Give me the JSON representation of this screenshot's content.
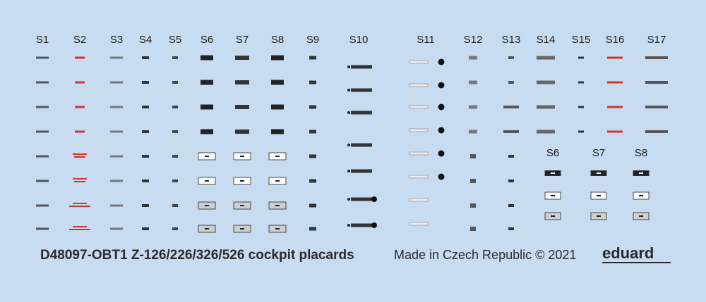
{
  "sheet": {
    "columns": [
      "S1",
      "S2",
      "S3",
      "S4",
      "S5",
      "S6",
      "S7",
      "S8",
      "S9",
      "S10",
      "S11",
      "S12",
      "S13",
      "S14",
      "S15",
      "S16",
      "S17"
    ],
    "extra_columns": [
      "S6",
      "S7",
      "S8"
    ],
    "footer": {
      "code": "D48097-OBT1 Z-126/226/326/526 cockpit placards",
      "origin": "Made in Czech Republic © 2021",
      "brand": "eduard"
    }
  }
}
